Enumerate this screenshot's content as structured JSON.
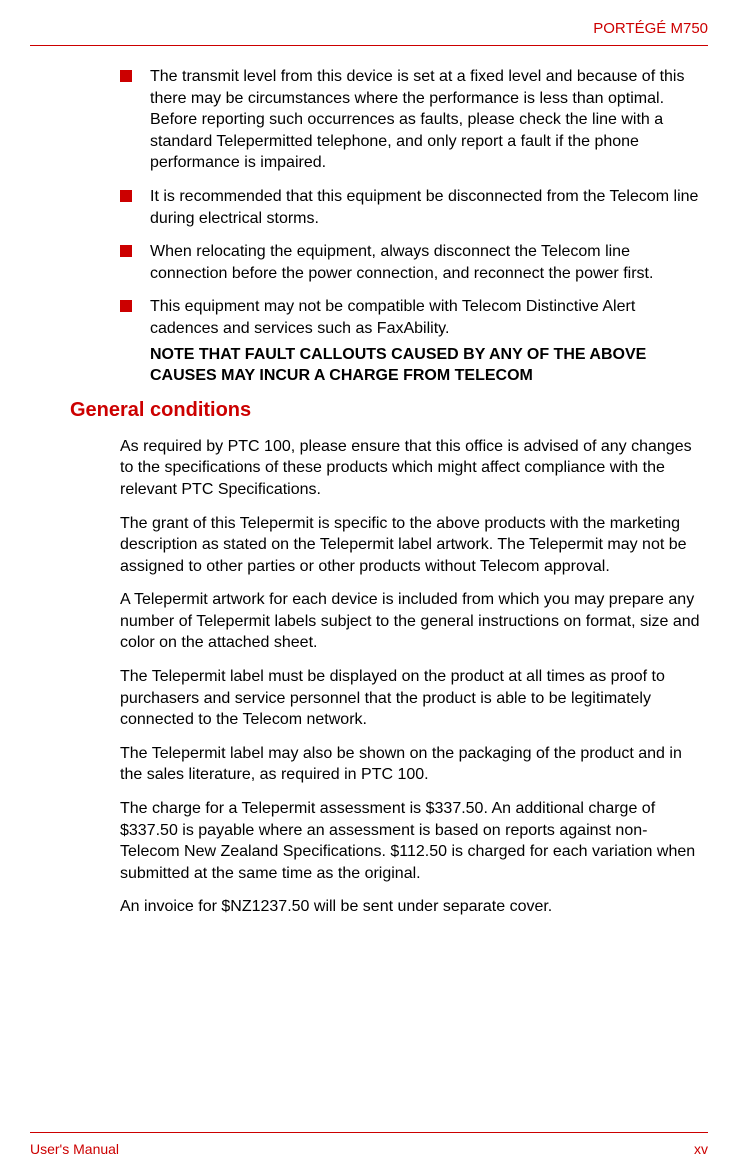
{
  "header": {
    "product_name": "PORTÉGÉ  M750"
  },
  "bullets": {
    "item1": "The transmit level from this device is set at a fixed level and because of this there may be circumstances where the performance is less than optimal. Before reporting such occurrences as faults, please check the line with a standard Telepermitted telephone, and only report a fault if the phone performance is impaired.",
    "item2": "It is recommended that this equipment be disconnected from the Telecom line during electrical storms.",
    "item3": "When relocating the equipment, always disconnect the Telecom line connection before the power connection, and reconnect the power first.",
    "item4": "This equipment may not be compatible with Telecom Distinctive Alert cadences and services such as FaxAbility.",
    "note": "NOTE THAT FAULT CALLOUTS CAUSED BY ANY OF THE ABOVE CAUSES MAY INCUR A CHARGE FROM TELECOM"
  },
  "section": {
    "heading": "General conditions",
    "p1": "As required by PTC 100, please ensure that this office is advised of any changes to the specifications of these products which might affect compliance with the relevant PTC Specifications.",
    "p2": "The grant of this Telepermit is specific to the above products with the marketing description as stated on the Telepermit label artwork. The Telepermit may not be assigned to other parties or other products without Telecom approval.",
    "p3": "A Telepermit artwork for each device is included from which you may prepare any number of Telepermit labels subject to the general instructions on format, size and color on the attached sheet.",
    "p4": "The Telepermit label must be displayed on the product at all times as proof to purchasers and service personnel that the product is able to be legitimately connected to the Telecom network.",
    "p5": "The Telepermit label may also be shown on the packaging of the product and in the sales literature, as required in PTC 100.",
    "p6": "The charge for a Telepermit assessment is $337.50. An additional charge of $337.50 is payable where an assessment is based on reports against non-Telecom New Zealand Specifications. $112.50 is charged for each variation when submitted at the same time as the original.",
    "p7": "An invoice for $NZ1237.50 will be sent under separate cover."
  },
  "footer": {
    "manual": "User's Manual",
    "page": "xv"
  }
}
